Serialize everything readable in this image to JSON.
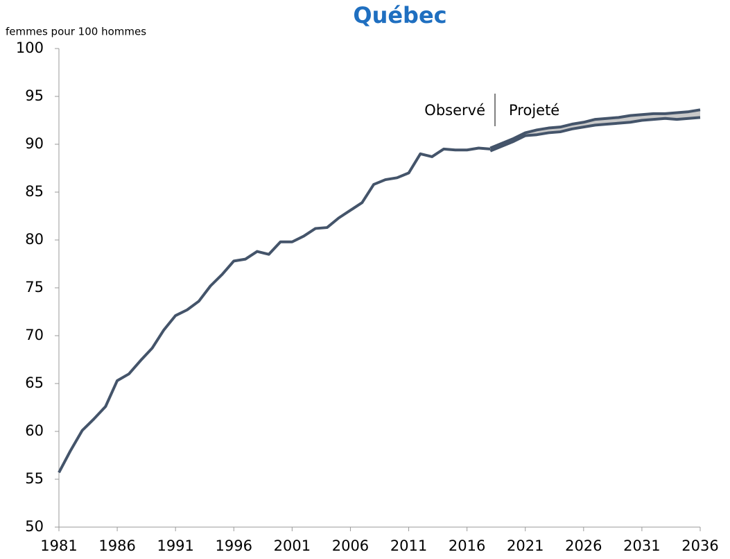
{
  "chart_data": {
    "type": "line",
    "title": "Québec",
    "y_label": "femmes pour 100 hommes",
    "annotations": [
      "Observé",
      "Projeté"
    ],
    "x": [
      1981,
      1982,
      1983,
      1984,
      1985,
      1986,
      1987,
      1988,
      1989,
      1990,
      1991,
      1992,
      1993,
      1994,
      1995,
      1996,
      1997,
      1998,
      1999,
      2000,
      2001,
      2002,
      2003,
      2004,
      2005,
      2006,
      2007,
      2008,
      2009,
      2010,
      2011,
      2012,
      2013,
      2014,
      2015,
      2016,
      2017,
      2018,
      2019,
      2020,
      2021,
      2022,
      2023,
      2024,
      2025,
      2026,
      2027,
      2028,
      2029,
      2030,
      2031,
      2032,
      2033,
      2034,
      2035,
      2036
    ],
    "series": [
      {
        "color": "#44546a",
        "values": [
          55.7,
          58.0,
          60.1,
          61.3,
          62.6,
          65.3,
          66.0,
          67.4,
          68.7,
          70.6,
          72.1,
          72.7,
          73.6,
          75.2,
          76.4,
          77.8,
          78.0,
          78.8,
          78.5,
          79.8,
          79.8,
          80.4,
          81.2,
          81.3,
          82.3,
          83.1,
          83.9,
          85.8,
          86.3,
          86.5,
          87.0,
          89.0,
          88.7,
          89.5,
          89.4,
          89.4,
          89.6,
          89.5,
          null,
          null,
          null,
          null,
          null,
          null,
          null,
          null,
          null,
          null,
          null,
          null,
          null,
          null,
          null,
          null,
          null,
          null
        ]
      },
      {
        "color": "#44546a",
        "values": [
          null,
          null,
          null,
          null,
          null,
          null,
          null,
          null,
          null,
          null,
          null,
          null,
          null,
          null,
          null,
          null,
          null,
          null,
          null,
          null,
          null,
          null,
          null,
          null,
          null,
          null,
          null,
          null,
          null,
          null,
          null,
          null,
          null,
          null,
          null,
          null,
          null,
          89.6,
          90.1,
          90.6,
          91.2,
          91.5,
          91.7,
          91.8,
          92.1,
          92.3,
          92.6,
          92.7,
          92.8,
          93.0,
          93.1,
          93.2,
          93.2,
          93.3,
          93.4,
          93.6
        ]
      },
      {
        "color": "#44546a",
        "values": [
          null,
          null,
          null,
          null,
          null,
          null,
          null,
          null,
          null,
          null,
          null,
          null,
          null,
          null,
          null,
          null,
          null,
          null,
          null,
          null,
          null,
          null,
          null,
          null,
          null,
          null,
          null,
          null,
          null,
          null,
          null,
          null,
          null,
          null,
          null,
          null,
          null,
          89.3,
          89.8,
          90.3,
          90.9,
          91.0,
          91.2,
          91.3,
          91.6,
          91.8,
          92.0,
          92.1,
          92.2,
          92.3,
          92.5,
          92.6,
          92.7,
          92.6,
          92.7,
          92.8
        ]
      }
    ],
    "band_color": "#c9c9c9",
    "xlim": [
      1981,
      2036
    ],
    "xticks": [
      1981,
      1986,
      1991,
      1996,
      2001,
      2006,
      2011,
      2016,
      2021,
      2026,
      2031,
      2036
    ],
    "ylim": [
      50,
      100
    ],
    "yticks": [
      50,
      55,
      60,
      65,
      70,
      75,
      80,
      85,
      90,
      95,
      100
    ]
  }
}
